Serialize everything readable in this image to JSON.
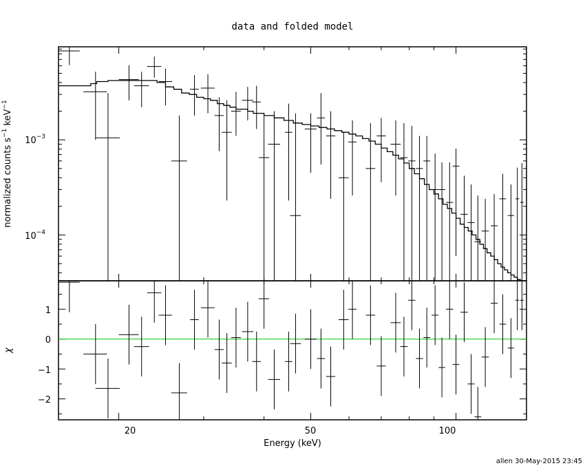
{
  "chart_data": {
    "title": "data and folded model",
    "footer": "allen 30-May-2015 23:45",
    "xlabel": "Energy (keV)",
    "x_scale": "log",
    "xlim": [
      15,
      140
    ],
    "x_ticks": [
      {
        "value": 20,
        "label": "20"
      },
      {
        "value": 50,
        "label": "50"
      },
      {
        "value": 100,
        "label": "100"
      }
    ],
    "panels": [
      {
        "id": "spectrum",
        "type": "scatter",
        "ylabel": {
          "main": "normalized counts s",
          "sup1": "−1",
          "mid": " keV",
          "sup2": "−1"
        },
        "y_scale": "log",
        "ylim": [
          3.3e-05,
          0.0095
        ],
        "y_ticks": [
          {
            "value": 0.001,
            "base": "10",
            "exp": "−3"
          },
          {
            "value": 0.0001,
            "base": "10",
            "exp": "−4"
          }
        ],
        "data": {
          "name": "data",
          "color": "#000000",
          "x": [
            15.8,
            17.9,
            19.0,
            21.0,
            22.3,
            23.7,
            25.0,
            26.7,
            28.7,
            30.6,
            32.3,
            33.5,
            35.0,
            37.0,
            38.6,
            40.0,
            42.0,
            45.0,
            46.5,
            50.0,
            52.5,
            55.0,
            58.5,
            61.0,
            66.5,
            70.0,
            75.0,
            78.0,
            81.0,
            84.0,
            87.0,
            90.5,
            93.5,
            97.0,
            100.0,
            104.0,
            107.5,
            111.0,
            115.0,
            120.0,
            125.0,
            130.0,
            134.0,
            137.0
          ],
          "x_err_lo": [
            0.8,
            1.0,
            1.1,
            1.0,
            0.8,
            0.8,
            0.8,
            1.0,
            0.6,
            1.0,
            0.7,
            0.8,
            0.8,
            1.0,
            0.8,
            1.0,
            1.2,
            0.8,
            1.2,
            1.4,
            1.0,
            1.2,
            1.4,
            1.2,
            1.5,
            1.5,
            1.8,
            1.4,
            1.4,
            1.4,
            1.4,
            1.5,
            1.5,
            1.7,
            1.6,
            1.8,
            1.8,
            1.8,
            2.0,
            2.0,
            2.0,
            2.0,
            1.2,
            1.2
          ],
          "x_err_hi": [
            0.8,
            1.0,
            1.1,
            1.0,
            0.8,
            0.8,
            0.8,
            1.0,
            0.6,
            1.0,
            0.7,
            0.8,
            0.8,
            1.0,
            0.8,
            1.0,
            1.2,
            0.8,
            1.2,
            1.4,
            1.0,
            1.2,
            1.4,
            1.2,
            1.5,
            1.5,
            1.8,
            1.4,
            1.4,
            1.4,
            1.4,
            1.5,
            1.5,
            1.7,
            1.6,
            1.8,
            1.8,
            1.8,
            2.0,
            2.0,
            2.0,
            2.0,
            1.2,
            1.2
          ],
          "y": [
            0.0086,
            0.0032,
            0.00105,
            0.0043,
            0.0037,
            0.0059,
            0.0041,
            0.0006,
            0.0034,
            0.0035,
            0.0018,
            0.0012,
            0.002,
            0.0026,
            0.0025,
            0.00065,
            0.0009,
            0.0012,
            0.00016,
            0.0013,
            0.0017,
            0.0011,
            0.0004,
            0.00095,
            0.0005,
            0.0011,
            0.0009,
            0.00065,
            0.0006,
            0.0005,
            0.0006,
            0.0003,
            0.0003,
            0.00022,
            0.00053,
            0.000165,
            0.000135,
            8.5e-05,
            0.00011,
            0.000125,
            0.00024,
            0.00016,
            0.00024,
            0.00022
          ],
          "y_lo": [
            0.0061,
            0.001,
            3.3e-05,
            0.0026,
            0.0022,
            0.0045,
            0.0023,
            3.3e-05,
            0.0018,
            0.0019,
            0.00076,
            0.00023,
            0.0011,
            0.0016,
            0.0013,
            3.3e-05,
            3.3e-05,
            0.00023,
            3.3e-05,
            0.00045,
            0.00055,
            0.00024,
            3.3e-05,
            0.00026,
            3.3e-05,
            0.00036,
            0.00026,
            3.3e-05,
            3.3e-05,
            3.3e-05,
            3.3e-05,
            3.3e-05,
            3.3e-05,
            3.3e-05,
            6e-05,
            3.3e-05,
            3.3e-05,
            3.3e-05,
            3.3e-05,
            3.3e-05,
            3.3e-05,
            3.3e-05,
            3.3e-05,
            3.3e-05
          ],
          "y_hi": [
            0.0095,
            0.0052,
            0.0031,
            0.0061,
            0.0052,
            0.0075,
            0.0056,
            0.0018,
            0.0048,
            0.0049,
            0.0028,
            0.0026,
            0.0032,
            0.0036,
            0.0037,
            0.0018,
            0.002,
            0.0024,
            0.0019,
            0.0019,
            0.0031,
            0.002,
            0.0012,
            0.0016,
            0.0015,
            0.0017,
            0.0016,
            0.0015,
            0.0014,
            0.0011,
            0.0011,
            0.00072,
            0.00058,
            0.00058,
            0.00081,
            0.00042,
            0.00034,
            0.00026,
            0.00024,
            0.00027,
            0.00044,
            0.00034,
            0.00051,
            0.00057
          ]
        },
        "model": {
          "name": "folded model",
          "color": "#000000",
          "x": [
            15.0,
            16.3,
            17.5,
            18.0,
            19.0,
            22.0,
            24.0,
            25.0,
            26.0,
            27.0,
            28.0,
            29.0,
            30.0,
            31.0,
            32.0,
            33.0,
            34.0,
            35.0,
            36.0,
            37.0,
            38.0,
            40.0,
            42.0,
            44.0,
            46.0,
            48.0,
            50.0,
            52.0,
            54.0,
            56.0,
            58.0,
            60.0,
            62.0,
            64.0,
            66.0,
            68.0,
            70.0,
            72.0,
            74.0,
            76.0,
            78.0,
            80.0,
            82.0,
            84.0,
            86.0,
            88.0,
            90.0,
            92.0,
            94.0,
            96.0,
            98.0,
            100.0,
            102.0,
            104.0,
            106.0,
            108.0,
            110.0,
            112.0,
            114.0,
            116.0,
            118.0,
            120.0,
            122.0,
            124.0,
            126.0,
            128.0,
            130.0,
            132.0,
            134.0,
            136.0,
            138.0,
            140.0
          ],
          "y": [
            0.0037,
            0.0037,
            0.0039,
            0.0041,
            0.0042,
            0.0042,
            0.004,
            0.0036,
            0.0034,
            0.0031,
            0.003,
            0.0028,
            0.0027,
            0.0026,
            0.0024,
            0.0023,
            0.0022,
            0.0021,
            0.0021,
            0.002,
            0.0019,
            0.0018,
            0.0017,
            0.0016,
            0.0015,
            0.00145,
            0.0014,
            0.00135,
            0.0013,
            0.00125,
            0.0012,
            0.00115,
            0.0011,
            0.00103,
            0.00097,
            0.0009,
            0.00082,
            0.00075,
            0.00069,
            0.00063,
            0.00057,
            0.0005,
            0.00044,
            0.00039,
            0.00034,
            0.0003,
            0.00027,
            0.00024,
            0.00021,
            0.00019,
            0.00017,
            0.00015,
            0.00013,
            0.00012,
            0.00011,
            0.0001,
            9e-05,
            8e-05,
            7.2e-05,
            6.5e-05,
            6e-05,
            5.5e-05,
            5e-05,
            4.6e-05,
            4.3e-05,
            4e-05,
            3.8e-05,
            3.6e-05,
            3.4e-05,
            3.3e-05,
            3.3e-05,
            3.3e-05
          ]
        }
      },
      {
        "id": "residuals",
        "type": "scatter",
        "ylabel": "χ",
        "y_scale": "linear",
        "ylim": [
          -2.7,
          1.95
        ],
        "y_ticks": [
          {
            "value": 1,
            "label": "1"
          },
          {
            "value": 0,
            "label": "0"
          },
          {
            "value": -1,
            "label": "−1"
          },
          {
            "value": -2,
            "label": "−2"
          }
        ],
        "zero_line": {
          "value": 0,
          "color": "#22cc22"
        },
        "data": {
          "name": "residuals",
          "color": "#000000",
          "x": [
            15.8,
            17.9,
            19.0,
            21.0,
            22.3,
            23.7,
            25.0,
            26.7,
            28.7,
            30.6,
            32.3,
            33.5,
            35.0,
            37.0,
            38.6,
            40.0,
            42.0,
            45.0,
            46.5,
            50.0,
            52.5,
            55.0,
            58.5,
            61.0,
            66.5,
            70.0,
            75.0,
            78.0,
            81.0,
            84.0,
            87.0,
            90.5,
            93.5,
            97.0,
            100.0,
            104.0,
            107.5,
            111.0,
            115.0,
            120.0,
            125.0,
            130.0,
            134.0,
            137.0
          ],
          "x_err": [
            0.8,
            1.0,
            1.1,
            1.0,
            0.8,
            0.8,
            0.8,
            1.0,
            0.6,
            1.0,
            0.7,
            0.8,
            0.8,
            1.0,
            0.8,
            1.0,
            1.2,
            0.8,
            1.2,
            1.4,
            1.0,
            1.2,
            1.4,
            1.2,
            1.5,
            1.5,
            1.8,
            1.4,
            1.4,
            1.4,
            1.4,
            1.5,
            1.5,
            1.7,
            1.6,
            1.8,
            1.8,
            1.8,
            2.0,
            2.0,
            2.0,
            2.0,
            1.2,
            1.2
          ],
          "y": [
            1.9,
            -0.5,
            -1.65,
            0.15,
            -0.25,
            1.55,
            0.8,
            -1.8,
            0.65,
            1.05,
            -0.35,
            -0.8,
            0.05,
            0.25,
            -0.75,
            1.35,
            -1.35,
            -0.75,
            -0.15,
            0.0,
            -0.65,
            -1.25,
            0.65,
            1.0,
            0.8,
            -0.9,
            0.55,
            -0.25,
            1.3,
            -0.65,
            0.05,
            0.8,
            -0.95,
            1.0,
            -0.85,
            0.9,
            -1.5,
            -2.6,
            -0.6,
            1.2,
            0.5,
            -0.3,
            1.3,
            1.3
          ],
          "y_err": [
            1.0,
            1.0,
            1.0,
            1.0,
            1.0,
            1.0,
            1.0,
            1.0,
            1.0,
            1.0,
            1.0,
            1.0,
            1.0,
            1.0,
            1.0,
            1.0,
            1.0,
            1.0,
            1.0,
            1.0,
            1.0,
            1.0,
            1.0,
            1.0,
            1.0,
            1.0,
            1.0,
            1.0,
            1.0,
            1.0,
            1.0,
            1.0,
            1.0,
            1.0,
            1.0,
            1.0,
            1.0,
            1.0,
            1.0,
            1.0,
            1.0,
            1.0,
            1.0,
            1.0
          ]
        }
      }
    ]
  }
}
